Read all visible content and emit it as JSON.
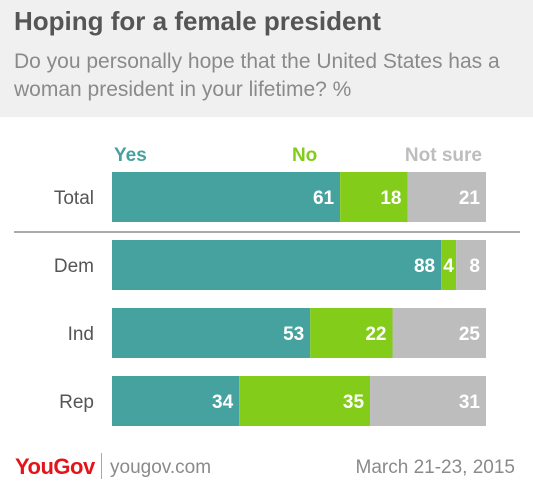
{
  "header": {
    "title": "Hoping for a female president",
    "subtitle": "Do you personally hope that the United States has a woman president in your lifetime? %"
  },
  "chart_data": {
    "type": "bar",
    "orientation": "horizontal",
    "stacked": true,
    "categories": [
      "Total",
      "Dem",
      "Ind",
      "Rep"
    ],
    "series": [
      {
        "name": "Yes",
        "color": "#45a29e",
        "values": [
          61,
          88,
          53,
          34
        ]
      },
      {
        "name": "No",
        "color": "#84cc1a",
        "values": [
          18,
          4,
          22,
          35
        ]
      },
      {
        "name": "Not sure",
        "color": "#bdbdbd",
        "values": [
          21,
          8,
          25,
          31
        ]
      }
    ],
    "legend_placement": "top",
    "data_labels": true,
    "grid": false
  },
  "footer": {
    "brand": "YouGov",
    "site": "yougov.com",
    "date": "March 21-23, 2015"
  }
}
